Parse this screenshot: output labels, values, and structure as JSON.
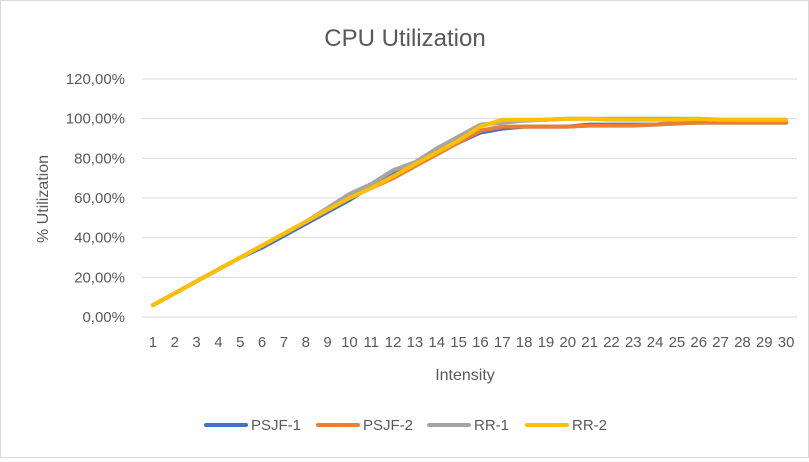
{
  "chart_data": {
    "type": "line",
    "title": "CPU Utilization",
    "xlabel": "Intensity",
    "ylabel": "% Utilization",
    "categories": [
      "1",
      "2",
      "3",
      "4",
      "5",
      "6",
      "7",
      "8",
      "9",
      "10",
      "11",
      "12",
      "13",
      "14",
      "15",
      "16",
      "17",
      "18",
      "19",
      "20",
      "21",
      "22",
      "23",
      "24",
      "25",
      "26",
      "27",
      "28",
      "29",
      "30"
    ],
    "ylim": [
      0,
      120
    ],
    "yticks": [
      0,
      20,
      40,
      60,
      80,
      100,
      120
    ],
    "ytick_labels": [
      "0,00%",
      "20,00%",
      "40,00%",
      "60,00%",
      "80,00%",
      "100,00%",
      "120,00%"
    ],
    "grid": true,
    "legend_position": "bottom",
    "series": [
      {
        "name": "PSJF-1",
        "color": "#4472C4",
        "values": [
          6,
          12,
          18,
          24,
          30,
          35,
          41,
          47,
          53,
          59,
          66,
          72,
          77,
          83,
          88,
          93,
          95,
          96,
          96,
          96,
          97,
          97,
          97,
          97,
          98,
          98,
          98,
          98,
          98,
          98
        ]
      },
      {
        "name": "PSJF-2",
        "color": "#ED7D31",
        "values": [
          6,
          12,
          18,
          24,
          30,
          36,
          42,
          48,
          54,
          60,
          65,
          70,
          76,
          82,
          88,
          94,
          96,
          96,
          96,
          96,
          96.5,
          96.5,
          96.5,
          97,
          97.5,
          98,
          98,
          98,
          98,
          98
        ]
      },
      {
        "name": "RR-1",
        "color": "#A5A5A5",
        "values": [
          6,
          12,
          18,
          24,
          30,
          36,
          42,
          48,
          55,
          62,
          67,
          74,
          78,
          85,
          91,
          97,
          98,
          99,
          99.5,
          100,
          100,
          100,
          100,
          100,
          100,
          100,
          99.5,
          99.5,
          99.5,
          99.5
        ]
      },
      {
        "name": "RR-2",
        "color": "#FFC000",
        "values": [
          6,
          12,
          18,
          24,
          30,
          36,
          42,
          48,
          54,
          60,
          65,
          71,
          77,
          83,
          89,
          96,
          99.5,
          99.5,
          99.5,
          100,
          100,
          99.5,
          99.5,
          99.5,
          99.5,
          100,
          99.5,
          99.5,
          99.5,
          99.5
        ]
      }
    ]
  }
}
